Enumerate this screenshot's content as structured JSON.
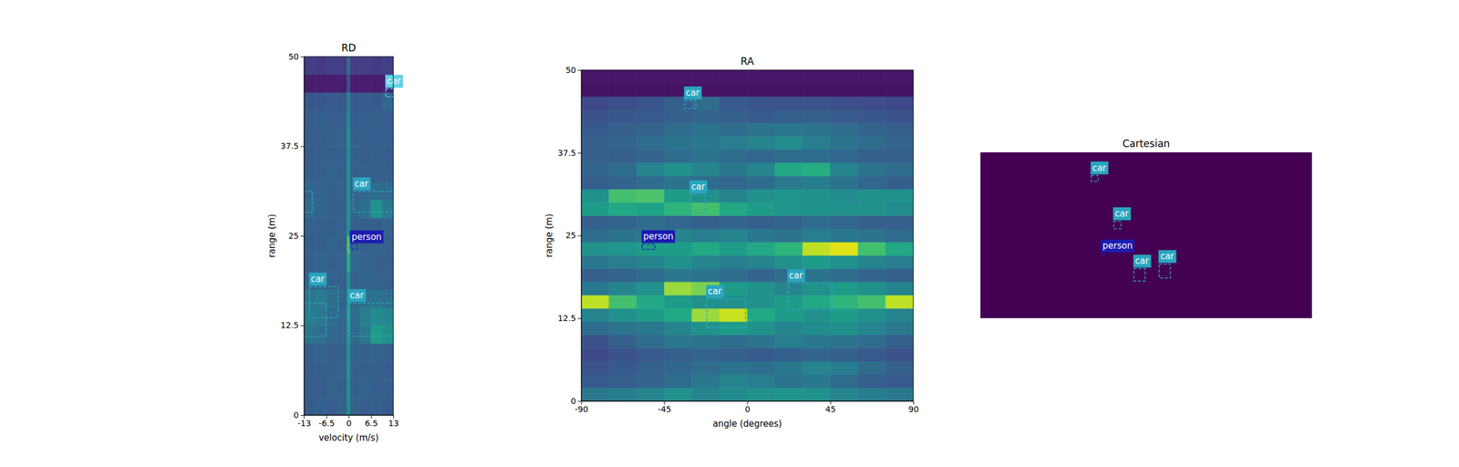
{
  "chart_data": [
    {
      "type": "heatmap",
      "title": "RD",
      "x_label": "velocity (m/s)",
      "y_label": "range (m)",
      "xlim": [
        -13,
        13
      ],
      "ylim": [
        0,
        50
      ],
      "xticks": [
        -13,
        -6.5,
        0,
        6.5,
        13
      ],
      "yticks": [
        0,
        12.5,
        25,
        37.5,
        50
      ],
      "clim": [
        0,
        1
      ],
      "x_edges": [
        -13,
        -9.75,
        -6.5,
        -3.25,
        -0.5,
        0.5,
        3.25,
        6.5,
        9.75,
        13
      ],
      "y_edges": [
        0,
        2.5,
        5,
        7.5,
        10,
        12.5,
        15,
        17.5,
        20,
        22.5,
        25,
        27.5,
        30,
        32.5,
        35,
        37.5,
        40,
        42.5,
        45,
        47.5,
        50
      ],
      "cells": [
        [
          0.28,
          0.3,
          0.29,
          0.31,
          0.5,
          0.31,
          0.29,
          0.3,
          0.28
        ],
        [
          0.3,
          0.29,
          0.31,
          0.3,
          0.5,
          0.3,
          0.31,
          0.29,
          0.3
        ],
        [
          0.29,
          0.3,
          0.3,
          0.32,
          0.52,
          0.3,
          0.3,
          0.3,
          0.29
        ],
        [
          0.3,
          0.31,
          0.29,
          0.3,
          0.5,
          0.31,
          0.3,
          0.31,
          0.3
        ],
        [
          0.38,
          0.36,
          0.33,
          0.32,
          0.55,
          0.34,
          0.4,
          0.55,
          0.5
        ],
        [
          0.42,
          0.4,
          0.35,
          0.33,
          0.58,
          0.35,
          0.42,
          0.48,
          0.45
        ],
        [
          0.4,
          0.42,
          0.36,
          0.32,
          0.55,
          0.33,
          0.36,
          0.38,
          0.36
        ],
        [
          0.32,
          0.33,
          0.31,
          0.3,
          0.52,
          0.31,
          0.32,
          0.31,
          0.3
        ],
        [
          0.3,
          0.31,
          0.3,
          0.31,
          0.62,
          0.33,
          0.31,
          0.3,
          0.3
        ],
        [
          0.3,
          0.3,
          0.31,
          0.3,
          0.7,
          0.34,
          0.3,
          0.31,
          0.3
        ],
        [
          0.31,
          0.3,
          0.3,
          0.31,
          0.5,
          0.31,
          0.3,
          0.3,
          0.31
        ],
        [
          0.34,
          0.32,
          0.3,
          0.3,
          0.52,
          0.33,
          0.36,
          0.5,
          0.4
        ],
        [
          0.33,
          0.31,
          0.3,
          0.31,
          0.5,
          0.31,
          0.34,
          0.36,
          0.34
        ],
        [
          0.3,
          0.3,
          0.31,
          0.3,
          0.5,
          0.3,
          0.3,
          0.3,
          0.3
        ],
        [
          0.29,
          0.3,
          0.3,
          0.3,
          0.49,
          0.3,
          0.29,
          0.3,
          0.29
        ],
        [
          0.3,
          0.29,
          0.3,
          0.31,
          0.5,
          0.3,
          0.3,
          0.29,
          0.3
        ],
        [
          0.29,
          0.3,
          0.29,
          0.3,
          0.48,
          0.29,
          0.3,
          0.3,
          0.29
        ],
        [
          0.27,
          0.27,
          0.28,
          0.27,
          0.45,
          0.28,
          0.28,
          0.27,
          0.33
        ],
        [
          0.08,
          0.08,
          0.08,
          0.08,
          0.25,
          0.08,
          0.08,
          0.08,
          0.08
        ],
        [
          0.18,
          0.17,
          0.18,
          0.18,
          0.35,
          0.18,
          0.18,
          0.17,
          0.18
        ]
      ],
      "boxes": [
        {
          "label": "car",
          "color": "#5fd3e6",
          "x": [
            10.8,
            13
          ],
          "y": [
            44.4,
            45.5
          ]
        },
        {
          "label": null,
          "color": "#2aa6bf",
          "x": [
            -13,
            -10.6
          ],
          "y": [
            28.3,
            31.2
          ]
        },
        {
          "label": "car",
          "color": "#2aa6bf",
          "x": [
            1.35,
            13
          ],
          "y": [
            28.3,
            31.2
          ]
        },
        {
          "label": "person",
          "color": "#1c1cb0",
          "x": [
            0.5,
            2.4
          ],
          "y": [
            23.1,
            23.8
          ]
        },
        {
          "label": "car",
          "color": "#2aa6bf",
          "x": [
            -11.4,
            -3
          ],
          "y": [
            13.6,
            17.9
          ]
        },
        {
          "label": null,
          "color": "#2aa6bf",
          "x": [
            -13,
            -6.5
          ],
          "y": [
            11,
            15.6
          ]
        },
        {
          "label": "car",
          "color": "#2aa6bf",
          "x": [
            0,
            13
          ],
          "y": [
            11,
            15.6
          ]
        }
      ]
    },
    {
      "type": "heatmap",
      "title": "RA",
      "x_label": "angle (degrees)",
      "y_label": "range (m)",
      "xlim": [
        -90,
        90
      ],
      "ylim": [
        0,
        50
      ],
      "xticks": [
        -90,
        -45,
        0,
        45,
        90
      ],
      "yticks": [
        0,
        12.5,
        25,
        37.5,
        50
      ],
      "clim": [
        0,
        1
      ],
      "x_edges": [
        -90,
        -75,
        -60,
        -45,
        -30,
        -15,
        0,
        15,
        30,
        45,
        60,
        75,
        90
      ],
      "y_edges": [
        0,
        2,
        4,
        6,
        8,
        10,
        12,
        14,
        16,
        18,
        20,
        22,
        24,
        26,
        28,
        30,
        32,
        34,
        36,
        38,
        40,
        42,
        44,
        46,
        48,
        50
      ],
      "cells": [
        [
          0.4,
          0.42,
          0.45,
          0.5,
          0.45,
          0.48,
          0.5,
          0.52,
          0.5,
          0.45,
          0.42,
          0.4
        ],
        [
          0.28,
          0.3,
          0.32,
          0.35,
          0.4,
          0.45,
          0.42,
          0.38,
          0.4,
          0.35,
          0.3,
          0.28
        ],
        [
          0.25,
          0.28,
          0.3,
          0.33,
          0.35,
          0.38,
          0.36,
          0.4,
          0.45,
          0.42,
          0.35,
          0.3
        ],
        [
          0.22,
          0.25,
          0.28,
          0.3,
          0.32,
          0.3,
          0.28,
          0.3,
          0.32,
          0.3,
          0.28,
          0.25
        ],
        [
          0.25,
          0.3,
          0.35,
          0.4,
          0.38,
          0.35,
          0.38,
          0.42,
          0.4,
          0.38,
          0.35,
          0.3
        ],
        [
          0.35,
          0.38,
          0.4,
          0.45,
          0.5,
          0.55,
          0.5,
          0.45,
          0.48,
          0.5,
          0.45,
          0.4
        ],
        [
          0.45,
          0.5,
          0.55,
          0.6,
          0.85,
          0.92,
          0.6,
          0.55,
          0.5,
          0.55,
          0.5,
          0.45
        ],
        [
          0.9,
          0.7,
          0.6,
          0.55,
          0.5,
          0.5,
          0.5,
          0.55,
          0.6,
          0.65,
          0.7,
          0.9
        ],
        [
          0.4,
          0.45,
          0.5,
          0.85,
          0.8,
          0.55,
          0.5,
          0.45,
          0.5,
          0.55,
          0.5,
          0.45
        ],
        [
          0.3,
          0.32,
          0.35,
          0.4,
          0.38,
          0.35,
          0.32,
          0.35,
          0.38,
          0.35,
          0.32,
          0.3
        ],
        [
          0.4,
          0.42,
          0.45,
          0.5,
          0.45,
          0.42,
          0.45,
          0.5,
          0.55,
          0.5,
          0.45,
          0.42
        ],
        [
          0.5,
          0.52,
          0.55,
          0.55,
          0.6,
          0.55,
          0.6,
          0.65,
          0.9,
          0.95,
          0.7,
          0.6
        ],
        [
          0.35,
          0.38,
          0.4,
          0.45,
          0.42,
          0.45,
          0.4,
          0.38,
          0.42,
          0.4,
          0.38,
          0.35
        ],
        [
          0.3,
          0.32,
          0.35,
          0.33,
          0.3,
          0.32,
          0.3,
          0.32,
          0.35,
          0.33,
          0.3,
          0.3
        ],
        [
          0.55,
          0.6,
          0.58,
          0.65,
          0.7,
          0.6,
          0.55,
          0.52,
          0.5,
          0.5,
          0.5,
          0.48
        ],
        [
          0.5,
          0.7,
          0.72,
          0.55,
          0.5,
          0.45,
          0.5,
          0.52,
          0.5,
          0.48,
          0.5,
          0.5
        ],
        [
          0.3,
          0.32,
          0.35,
          0.38,
          0.35,
          0.33,
          0.35,
          0.4,
          0.42,
          0.38,
          0.33,
          0.3
        ],
        [
          0.32,
          0.35,
          0.45,
          0.5,
          0.45,
          0.4,
          0.45,
          0.6,
          0.62,
          0.45,
          0.38,
          0.35
        ],
        [
          0.3,
          0.3,
          0.32,
          0.35,
          0.38,
          0.35,
          0.33,
          0.35,
          0.35,
          0.33,
          0.3,
          0.3
        ],
        [
          0.3,
          0.32,
          0.35,
          0.38,
          0.4,
          0.42,
          0.45,
          0.48,
          0.42,
          0.38,
          0.35,
          0.32
        ],
        [
          0.28,
          0.3,
          0.32,
          0.35,
          0.38,
          0.35,
          0.38,
          0.4,
          0.38,
          0.35,
          0.32,
          0.3
        ],
        [
          0.25,
          0.27,
          0.28,
          0.3,
          0.32,
          0.3,
          0.28,
          0.3,
          0.3,
          0.28,
          0.27,
          0.25
        ],
        [
          0.22,
          0.24,
          0.26,
          0.3,
          0.35,
          0.28,
          0.26,
          0.25,
          0.25,
          0.24,
          0.23,
          0.22
        ],
        [
          0.05,
          0.05,
          0.05,
          0.05,
          0.05,
          0.05,
          0.05,
          0.05,
          0.05,
          0.05,
          0.05,
          0.05
        ],
        [
          0.06,
          0.06,
          0.06,
          0.06,
          0.06,
          0.06,
          0.06,
          0.06,
          0.06,
          0.06,
          0.06,
          0.06
        ]
      ],
      "boxes": [
        {
          "label": "car",
          "color": "#2aa6bf",
          "x": [
            -34,
            -28
          ],
          "y": [
            44.2,
            45.4
          ]
        },
        {
          "label": "car",
          "color": "#2aa6bf",
          "x": [
            -31,
            -23
          ],
          "y": [
            28.4,
            31.2
          ]
        },
        {
          "label": "person",
          "color": "#1c1cb0",
          "x": [
            -57,
            -50
          ],
          "y": [
            22.9,
            23.7
          ]
        },
        {
          "label": "car",
          "color": "#2aa6bf",
          "x": [
            -22,
            -1
          ],
          "y": [
            11.1,
            15.4
          ]
        },
        {
          "label": "car",
          "color": "#2aa6bf",
          "x": [
            22,
            46
          ],
          "y": [
            13.8,
            17.8
          ]
        }
      ]
    },
    {
      "type": "heatmap",
      "title": "Cartesian",
      "tick_labels": false,
      "xlim": [
        -50,
        50
      ],
      "ylim": [
        0,
        50
      ],
      "clim": [
        0,
        1
      ],
      "x_edges": [
        -50,
        50
      ],
      "y_edges": [
        0,
        50
      ],
      "cells": [
        [
          0
        ]
      ],
      "boxes": [
        {
          "label": "car",
          "color": "#2aa6bf",
          "x": [
            -16.6,
            -14.4
          ],
          "y": [
            41.3,
            43
          ]
        },
        {
          "label": "car",
          "color": "#2aa6bf",
          "x": [
            -9.8,
            -7.6
          ],
          "y": [
            27,
            29.2
          ]
        },
        {
          "label": "person",
          "color": "#1c1cb0",
          "x": [
            -13.5,
            -12.5
          ],
          "y": [
            19,
            19.5
          ]
        },
        {
          "label": "car",
          "color": "#2aa6bf",
          "x": [
            -3.7,
            -0.3
          ],
          "y": [
            11.2,
            14.9
          ]
        },
        {
          "label": "car",
          "color": "#2aa6bf",
          "x": [
            3.9,
            7.3
          ],
          "y": [
            12.1,
            16.3
          ]
        }
      ]
    }
  ]
}
